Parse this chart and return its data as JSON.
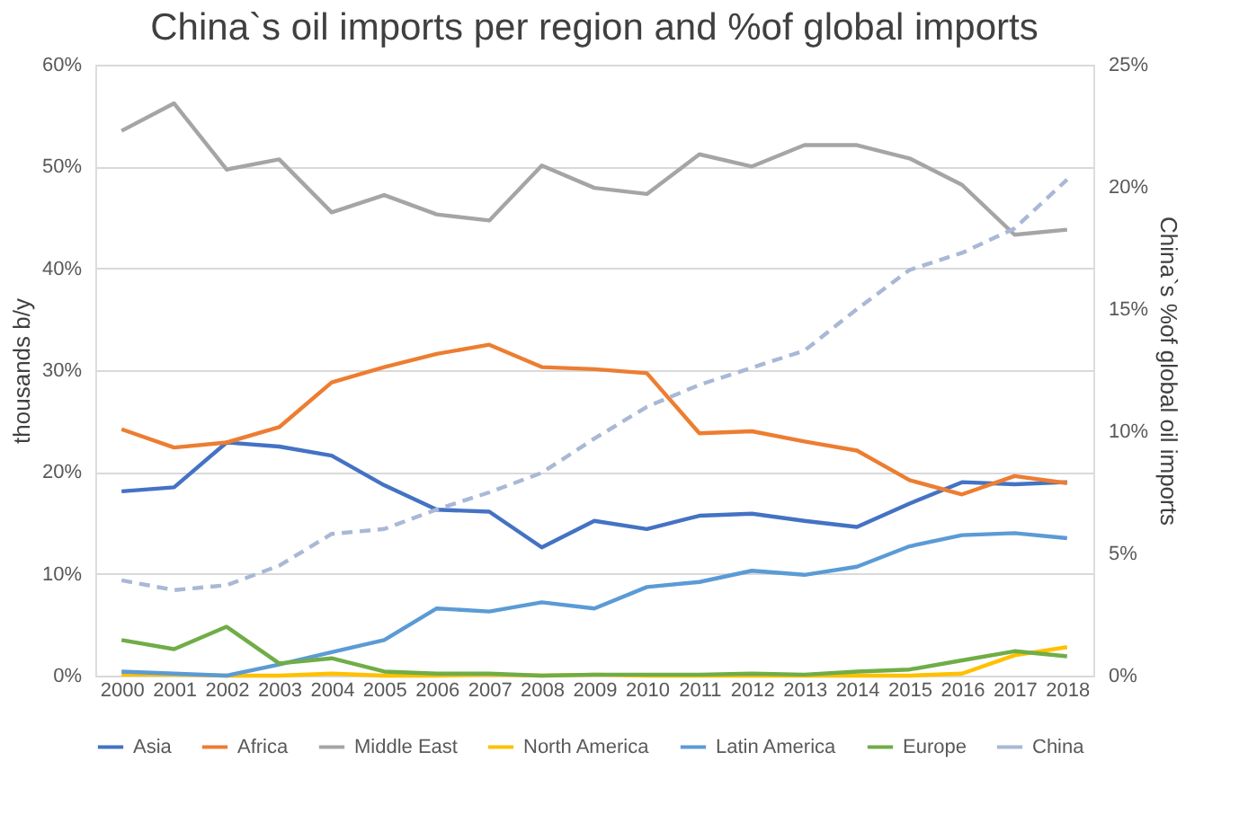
{
  "chart_data": {
    "type": "line",
    "title": "China`s oil imports per region and %of global imports",
    "xlabel": null,
    "ylabel": "thousands b/y",
    "y2label": "China`s %of global oil imports",
    "categories": [
      "2000",
      "2001",
      "2002",
      "2003",
      "2004",
      "2005",
      "2006",
      "2007",
      "2008",
      "2009",
      "2010",
      "2011",
      "2012",
      "2013",
      "2014",
      "2015",
      "2016",
      "2017",
      "2018"
    ],
    "series": [
      {
        "name": "Asia",
        "color": "#4472c4",
        "values": [
          18.1,
          18.5,
          22.9,
          22.5,
          21.6,
          18.7,
          16.3,
          16.1,
          12.6,
          15.2,
          14.4,
          15.7,
          15.9,
          15.2,
          14.6,
          16.9,
          19.0,
          18.8,
          19.0
        ]
      },
      {
        "name": "Africa",
        "color": "#ed7d31",
        "values": [
          24.2,
          22.4,
          22.9,
          24.4,
          28.8,
          30.3,
          31.6,
          32.5,
          30.3,
          30.1,
          29.7,
          23.8,
          24.0,
          23.0,
          22.1,
          19.2,
          17.8,
          19.6,
          18.9
        ]
      },
      {
        "name": "Middle East",
        "color": "#a5a5a5",
        "values": [
          53.5,
          56.2,
          49.7,
          50.7,
          45.5,
          47.2,
          45.3,
          44.7,
          50.1,
          47.9,
          47.3,
          51.2,
          50.0,
          52.1,
          52.1,
          50.8,
          48.2,
          43.3,
          43.8
        ]
      },
      {
        "name": "North America",
        "color": "#ffc000",
        "values": [
          0.1,
          0.1,
          0,
          0,
          0.2,
          0,
          0,
          0.1,
          0,
          0.1,
          0,
          0,
          0,
          0,
          0,
          0,
          0.2,
          2.0,
          2.8
        ]
      },
      {
        "name": "Latin America",
        "color": "#5b9bd5",
        "values": [
          0.4,
          0.2,
          0,
          1.1,
          2.3,
          3.5,
          6.6,
          6.3,
          7.2,
          6.6,
          8.7,
          9.2,
          10.3,
          9.9,
          10.7,
          12.7,
          13.8,
          14.0,
          13.5
        ]
      },
      {
        "name": "Europe",
        "color": "#70ad47",
        "values": [
          3.5,
          2.6,
          4.8,
          1.2,
          1.7,
          0.4,
          0.2,
          0.2,
          0,
          0.1,
          0.1,
          0.1,
          0.2,
          0.1,
          0.4,
          0.6,
          1.5,
          2.4,
          1.9
        ]
      },
      {
        "name": "China",
        "color": "#a9b8d6",
        "axis": "y2",
        "line_style": "dashed",
        "values": [
          3.9,
          3.5,
          3.7,
          4.5,
          5.8,
          6.0,
          6.8,
          7.5,
          8.3,
          9.7,
          11.0,
          11.9,
          12.6,
          13.3,
          15.0,
          16.6,
          17.3,
          18.3,
          20.3
        ]
      }
    ],
    "ylim": [
      0,
      60
    ],
    "yticks": [
      {
        "value": 0,
        "label": "0%"
      },
      {
        "value": 10,
        "label": "10%"
      },
      {
        "value": 20,
        "label": "20%"
      },
      {
        "value": 30,
        "label": "30%"
      },
      {
        "value": 40,
        "label": "40%"
      },
      {
        "value": 50,
        "label": "50%"
      },
      {
        "value": 60,
        "label": "60%"
      }
    ],
    "y2lim": [
      0,
      25
    ],
    "y2ticks": [
      {
        "value": 0,
        "label": "0%"
      },
      {
        "value": 5,
        "label": "5%"
      },
      {
        "value": 10,
        "label": "10%"
      },
      {
        "value": 15,
        "label": "15%"
      },
      {
        "value": 20,
        "label": "20%"
      },
      {
        "value": 25,
        "label": "25%"
      }
    ],
    "grid": "y",
    "legend": "bottom",
    "line_style": "solid"
  }
}
